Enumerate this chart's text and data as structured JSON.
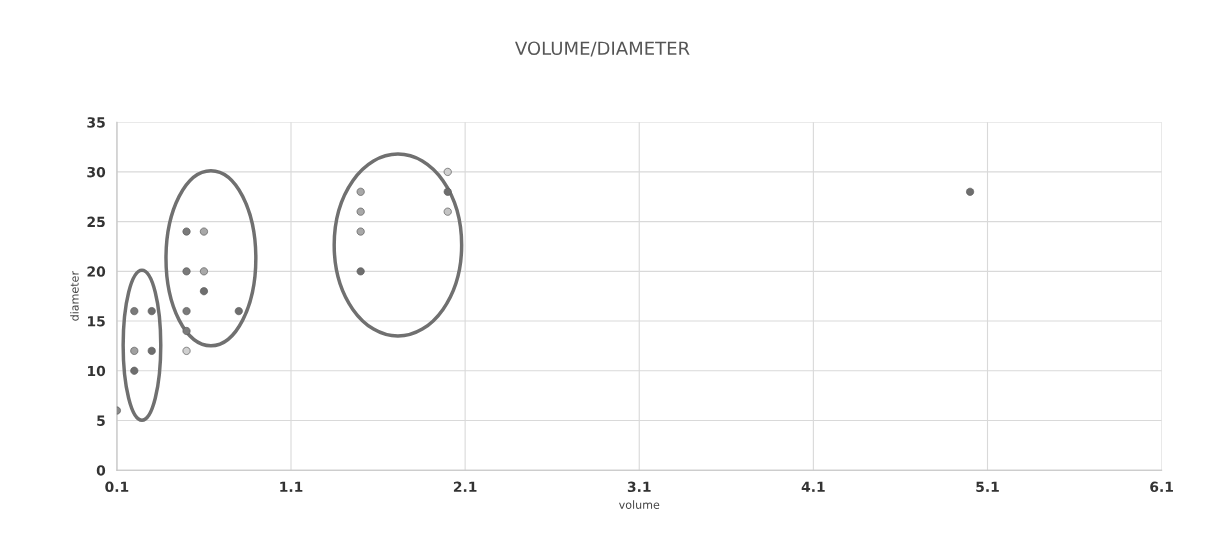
{
  "chart_data": {
    "type": "scatter",
    "title": "VOLUME/DIAMETER",
    "xlabel": "volume",
    "ylabel": "diameter",
    "x": [
      0.1,
      0.2,
      0.2,
      0.2,
      0.3,
      0.3,
      0.5,
      0.5,
      0.5,
      0.5,
      0.5,
      0.6,
      0.6,
      0.6,
      0.8,
      1.5,
      1.5,
      1.5,
      1.5,
      2.0,
      2.0,
      2.0,
      5.0
    ],
    "values": [
      6,
      16,
      12,
      10,
      16,
      12,
      24,
      20,
      16,
      14,
      12,
      24,
      20,
      18,
      16,
      28,
      26,
      24,
      20,
      30,
      28,
      26,
      28
    ],
    "colors": [
      "#8a8a8a",
      "#7a7a7a",
      "#a0a0a0",
      "#6e6e6e",
      "#6e6e6e",
      "#6e6e6e",
      "#7a7a7a",
      "#7a7a7a",
      "#7a7a7a",
      "#7a7a7a",
      "#d0d0d0",
      "#a8a8a8",
      "#a8a8a8",
      "#6e6e6e",
      "#6e6e6e",
      "#a8a8a8",
      "#a8a8a8",
      "#a8a8a8",
      "#6e6e6e",
      "#d0d0d0",
      "#6e6e6e",
      "#c4c4c4",
      "#6e6e6e"
    ],
    "xlim": [
      0.1,
      6.1
    ],
    "ylim": [
      0,
      35
    ],
    "xticks": [
      0.1,
      1.1,
      2.1,
      3.1,
      4.1,
      5.1,
      6.1
    ],
    "yticks": [
      0,
      5,
      10,
      15,
      20,
      25,
      30,
      35
    ],
    "grid": true,
    "marker": "circle"
  }
}
